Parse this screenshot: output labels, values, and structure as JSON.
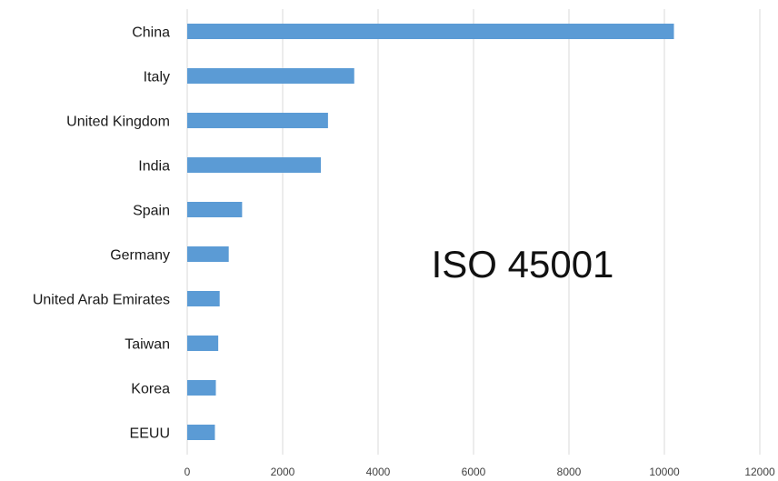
{
  "chart_data": {
    "type": "bar",
    "orientation": "horizontal",
    "categories": [
      "China",
      "Italy",
      "United Kingdom",
      "India",
      "Spain",
      "Germany",
      "United Arab Emirates",
      "Taiwan",
      "Korea",
      "EEUU"
    ],
    "values": [
      10200,
      3500,
      2950,
      2800,
      1150,
      870,
      680,
      650,
      600,
      580
    ],
    "xlim": [
      0,
      12000
    ],
    "xticks": [
      0,
      2000,
      4000,
      6000,
      8000,
      10000,
      12000
    ],
    "xtick_labels": [
      "0",
      "2000",
      "4000",
      "6000",
      "8000",
      "10000",
      "12000"
    ],
    "annotation": "ISO 45001",
    "bar_color": "#5b9bd5",
    "grid": "vertical",
    "legend": "none"
  }
}
